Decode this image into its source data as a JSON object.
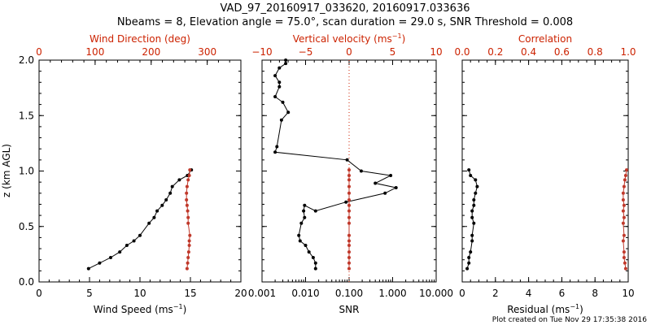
{
  "figure": {
    "title_line1": "VAD_97_20160917_033620, 20160917.033636",
    "title_line2": "Nbeams = 8, Elevation angle = 75.0°, scan duration = 29.0 s, SNR Threshold = 0.008",
    "footer": "Plot created on Tue Nov 29 17:35:38 2016"
  },
  "colors": {
    "black": "#000000",
    "red": "#cc2200",
    "brown": "#c0392b"
  },
  "panel1": {
    "xlabel": "Wind Speed (ms",
    "xlabel_sup": "−1",
    "xlabel_tail": ")",
    "toplabel": "Wind Direction (deg)",
    "ylabel": "z (km AGL)",
    "xticks": [
      "0",
      "5",
      "10",
      "15",
      "20"
    ],
    "topticks": [
      "0",
      "100",
      "200",
      "300"
    ],
    "yticks": [
      "0.0",
      "0.5",
      "1.0",
      "1.5",
      "2.0"
    ]
  },
  "panel2": {
    "xlabel": "SNR",
    "toplabel": "Vertical velocity (ms",
    "toplabel_sup": "−1",
    "toplabel_tail": ")",
    "xticks": [
      "0.001",
      "0.010",
      "0.100",
      "1.000",
      "10.000"
    ],
    "topticks": [
      "−10",
      "−5",
      "0",
      "5",
      "10"
    ]
  },
  "panel3": {
    "xlabel": "Residual (ms",
    "xlabel_sup": "−1",
    "xlabel_tail": ")",
    "toplabel": "Correlation",
    "xticks": [
      "0",
      "2",
      "4",
      "6",
      "8",
      "10"
    ],
    "topticks": [
      "0.0",
      "0.2",
      "0.4",
      "0.6",
      "0.8",
      "1.0"
    ]
  },
  "chart_data": [
    {
      "type": "line",
      "panel": "left",
      "ylabel": "z (km AGL)",
      "ylim": [
        0,
        2
      ],
      "series": [
        {
          "axis": "bottom",
          "xlabel": "Wind Speed (ms-1)",
          "xlim": [
            0,
            20
          ],
          "color": "#000000",
          "x": [
            4.9,
            6.0,
            7.1,
            8.0,
            8.7,
            9.4,
            10.0,
            10.9,
            11.4,
            11.7,
            12.2,
            12.6,
            13.0,
            13.2,
            13.9,
            14.7,
            15.1
          ],
          "y": [
            0.12,
            0.17,
            0.22,
            0.27,
            0.33,
            0.37,
            0.42,
            0.53,
            0.58,
            0.64,
            0.69,
            0.74,
            0.8,
            0.86,
            0.92,
            0.96,
            1.01
          ]
        },
        {
          "axis": "top",
          "xlabel": "Wind Direction (deg)",
          "xlim": [
            0,
            360
          ],
          "color": "#c0392b",
          "x": [
            264,
            265,
            266,
            267,
            268,
            268,
            269,
            266,
            266,
            265,
            264,
            263,
            263,
            264,
            266,
            268,
            269
          ],
          "y": [
            0.12,
            0.17,
            0.22,
            0.27,
            0.33,
            0.37,
            0.42,
            0.53,
            0.58,
            0.64,
            0.69,
            0.74,
            0.8,
            0.86,
            0.92,
            0.96,
            1.01
          ]
        }
      ]
    },
    {
      "type": "line",
      "panel": "middle",
      "ylim": [
        0,
        2
      ],
      "series": [
        {
          "axis": "bottom",
          "xlabel": "SNR",
          "scale": "log",
          "xlim": [
            0.001,
            10
          ],
          "color": "#000000",
          "x": [
            0.017,
            0.017,
            0.015,
            0.012,
            0.01,
            0.0075,
            0.007,
            0.008,
            0.0095,
            0.009,
            0.0095,
            0.017,
            0.085,
            0.67,
            1.2,
            0.4,
            0.9,
            0.19,
            0.09,
            0.002,
            0.0022,
            0.0028,
            0.004,
            0.003,
            0.002,
            0.0025,
            0.0025,
            0.002,
            0.0025,
            0.0035,
            0.0035
          ],
          "y": [
            0.12,
            0.17,
            0.22,
            0.27,
            0.33,
            0.37,
            0.42,
            0.53,
            0.58,
            0.64,
            0.69,
            0.64,
            0.72,
            0.8,
            0.85,
            0.89,
            0.96,
            1.0,
            1.1,
            1.17,
            1.22,
            1.46,
            1.53,
            1.62,
            1.67,
            1.76,
            1.8,
            1.86,
            1.93,
            1.97,
            2.0
          ]
        },
        {
          "axis": "top",
          "xlabel": "Vertical velocity (ms-1)",
          "xlim": [
            -10,
            10
          ],
          "color": "#c0392b",
          "x": [
            0.0,
            0.0,
            0.0,
            0.0,
            0.0,
            0.0,
            0.0,
            0.0,
            0.0,
            0.0,
            0.0,
            0.0,
            0.0,
            0.0,
            0.0,
            0.0,
            0.0
          ],
          "y": [
            0.12,
            0.17,
            0.22,
            0.27,
            0.33,
            0.37,
            0.42,
            0.53,
            0.58,
            0.64,
            0.69,
            0.74,
            0.8,
            0.86,
            0.92,
            0.96,
            1.01
          ]
        }
      ],
      "reference_line": {
        "axis": "top",
        "x": 0,
        "style": "dotted",
        "color": "#cc2200"
      }
    },
    {
      "type": "line",
      "panel": "right",
      "ylim": [
        0,
        2
      ],
      "series": [
        {
          "axis": "bottom",
          "xlabel": "Residual (ms-1)",
          "xlim": [
            0,
            10
          ],
          "color": "#000000",
          "x": [
            0.3,
            0.4,
            0.4,
            0.5,
            0.6,
            0.6,
            0.7,
            0.6,
            0.6,
            0.7,
            0.7,
            0.8,
            0.9,
            0.8,
            0.5,
            0.4
          ],
          "y": [
            0.12,
            0.17,
            0.22,
            0.27,
            0.37,
            0.42,
            0.53,
            0.58,
            0.64,
            0.69,
            0.74,
            0.8,
            0.86,
            0.92,
            0.96,
            1.01
          ]
        },
        {
          "axis": "top",
          "xlabel": "Correlation",
          "xlim": [
            0,
            1
          ],
          "color": "#c0392b",
          "x": [
            0.985,
            0.98,
            0.975,
            0.975,
            0.97,
            0.975,
            0.97,
            0.975,
            0.97,
            0.975,
            0.97,
            0.97,
            0.975,
            0.98,
            0.985,
            0.99
          ],
          "y": [
            0.12,
            0.17,
            0.22,
            0.27,
            0.37,
            0.42,
            0.53,
            0.58,
            0.64,
            0.69,
            0.74,
            0.8,
            0.86,
            0.92,
            0.96,
            1.01
          ]
        }
      ]
    }
  ]
}
